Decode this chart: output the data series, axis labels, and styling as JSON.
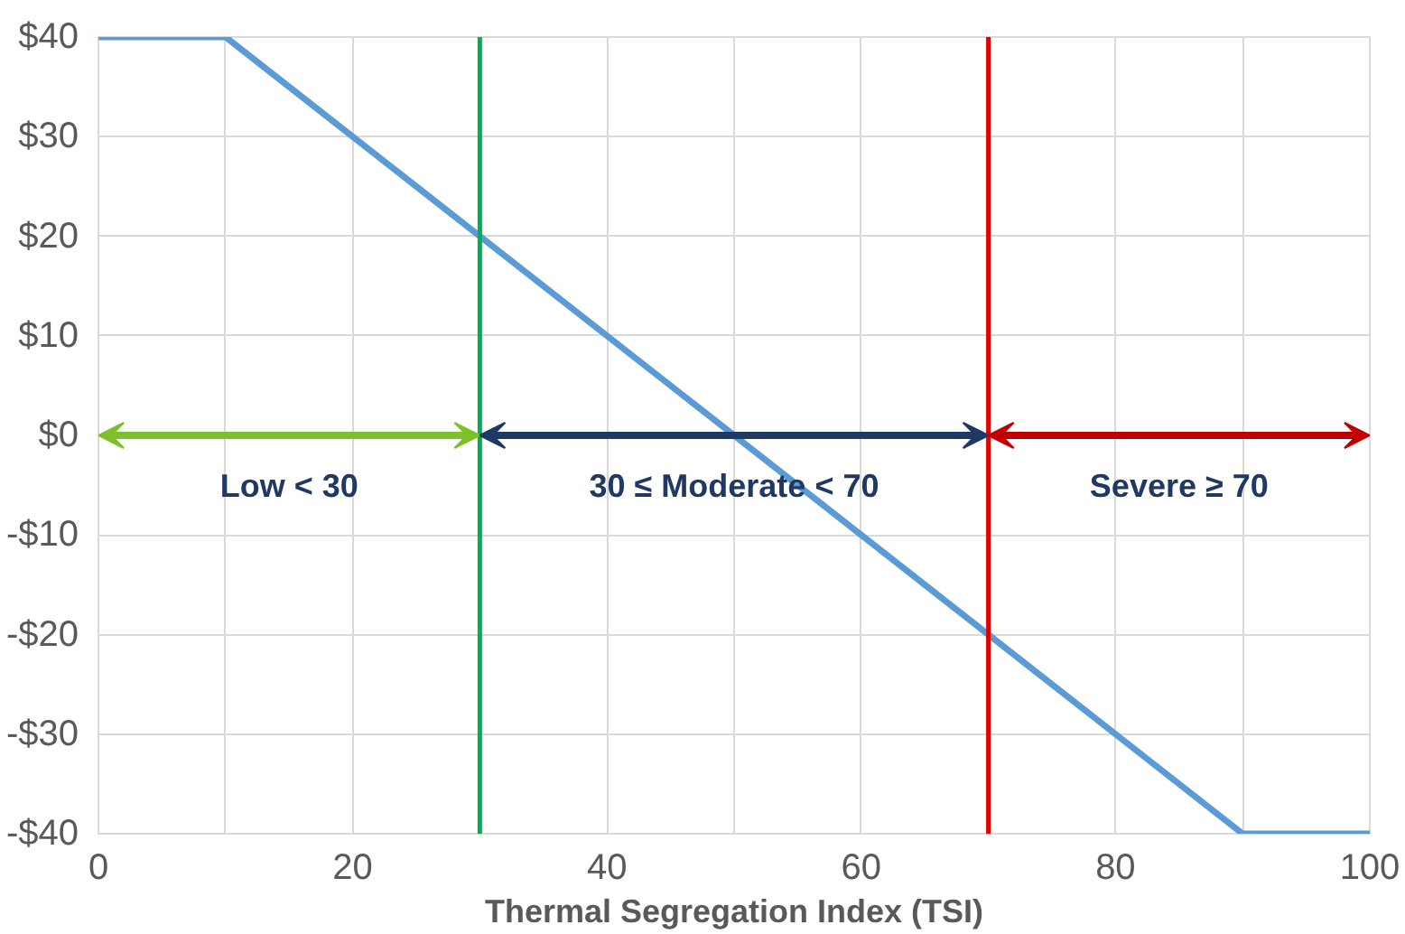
{
  "chart_data": {
    "type": "line",
    "xlabel": "Thermal Segregation Index (TSI)",
    "series": [
      {
        "color": "#5b9bd5",
        "x": [
          0,
          10,
          90,
          100
        ],
        "values": [
          40,
          40,
          -40,
          -40
        ]
      }
    ],
    "xlim": [
      0,
      100
    ],
    "xticks": [
      0,
      {
        "value": 10,
        "label": null
      },
      20,
      {
        "value": 30,
        "label": null
      },
      40,
      {
        "value": 50,
        "label": null
      },
      60,
      {
        "value": 70,
        "label": null
      },
      80,
      {
        "value": 90,
        "label": null
      },
      100
    ],
    "ylim": [
      -40,
      40
    ],
    "yticks": [
      {
        "value": -40,
        "label": "-$40"
      },
      {
        "value": -30,
        "label": "-$30"
      },
      {
        "value": -20,
        "label": "-$20"
      },
      {
        "value": -10,
        "label": "-$10"
      },
      {
        "value": 0,
        "label": "$0"
      },
      {
        "value": 10,
        "label": "$10"
      },
      {
        "value": 20,
        "label": "$20"
      },
      {
        "value": 30,
        "label": "$30"
      },
      {
        "value": 40,
        "label": "$40"
      }
    ],
    "grid": true,
    "line_style": "solid",
    "marker": "none",
    "ref_lines": [
      {
        "axis": "x",
        "value": 30,
        "color": "#00b050"
      },
      {
        "axis": "x",
        "value": 70,
        "color": "#e00000"
      }
    ],
    "annotations": [
      "Low < 30",
      "30 ≤ Moderate < 70",
      "Severe ≥ 70"
    ]
  }
}
